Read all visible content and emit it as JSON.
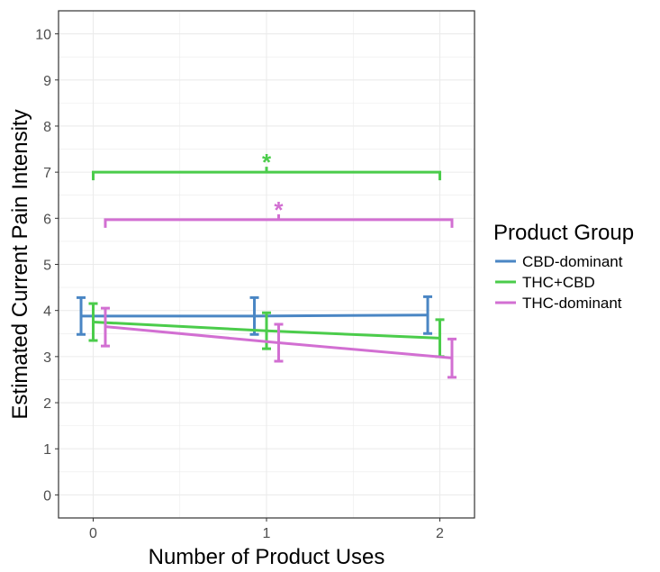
{
  "chart_data": {
    "type": "line",
    "title": "",
    "xlabel": "Number of Product Uses",
    "ylabel": "Estimated Current Pain Intensity",
    "x": [
      0,
      1,
      2
    ],
    "x_ticks": [
      "0",
      "1",
      "2"
    ],
    "xlim": [
      -0.2,
      2.2
    ],
    "ylim": [
      -0.5,
      10.5
    ],
    "y_ticks": [
      "0",
      "1",
      "2",
      "3",
      "4",
      "5",
      "6",
      "7",
      "8",
      "9",
      "10"
    ],
    "grid": true,
    "legend": {
      "title": "Product Group",
      "placement": "right"
    },
    "series": [
      {
        "name": "CBD-dominant",
        "color": "#4a86c4",
        "x_offset": -0.07,
        "values": [
          3.88,
          3.88,
          3.9
        ],
        "ci_low": [
          3.48,
          3.48,
          3.5
        ],
        "ci_high": [
          4.28,
          4.28,
          4.3
        ]
      },
      {
        "name": "THC+CBD",
        "color": "#4bcc4b",
        "x_offset": 0.0,
        "values": [
          3.75,
          3.56,
          3.4
        ],
        "ci_low": [
          3.35,
          3.17,
          3.0
        ],
        "ci_high": [
          4.15,
          3.95,
          3.8
        ]
      },
      {
        "name": "THC-dominant",
        "color": "#d26fd2",
        "x_offset": 0.07,
        "values": [
          3.65,
          3.3,
          2.97
        ],
        "ci_low": [
          3.23,
          2.9,
          2.55
        ],
        "ci_high": [
          4.05,
          3.7,
          3.38
        ]
      }
    ],
    "annotations": [
      {
        "label": "*",
        "color": "#4bcc4b",
        "y": 7.0,
        "x_start": 0.0,
        "x_end": 2.0
      },
      {
        "label": "*",
        "color": "#d26fd2",
        "y": 5.97,
        "x_start": 0.07,
        "x_end": 2.07
      }
    ]
  }
}
